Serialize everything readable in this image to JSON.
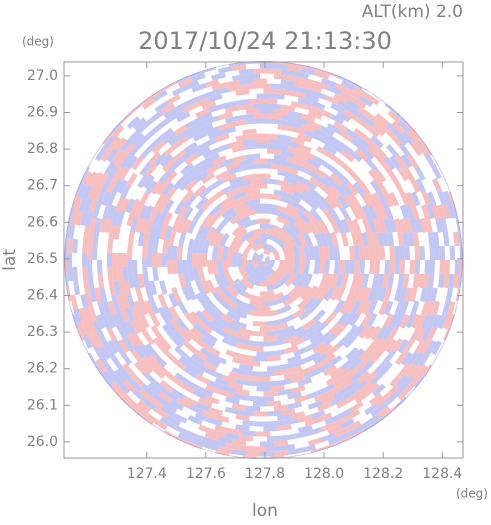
{
  "chart_data": {
    "type": "radar-image",
    "title": "2017/10/24 21:13:30",
    "subtitle": "ALT(km)  2.0",
    "x_label": "lon",
    "y_label": "lat",
    "x_unit": "(deg)",
    "y_unit": "(deg)",
    "xlim": [
      127.12,
      128.47
    ],
    "ylim": [
      25.956,
      27.038
    ],
    "xticks": [
      127.4,
      127.6,
      127.8,
      {
        "value": 128.0,
        "label": "128.0"
      },
      128.2,
      128.4
    ],
    "yticks": [
      {
        "value": 26.0,
        "label": "26.0"
      },
      26.1,
      26.2,
      26.3,
      26.4,
      26.5,
      26.6,
      26.7,
      26.8,
      26.9,
      {
        "value": 27.0,
        "label": "27.0"
      }
    ]
  }
}
